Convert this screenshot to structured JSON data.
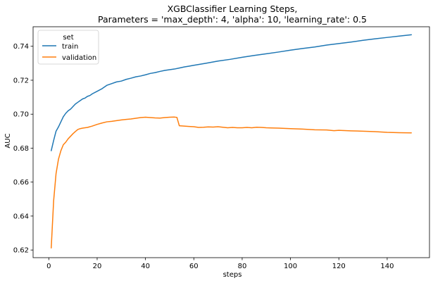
{
  "chart_data": {
    "type": "line",
    "title": "XGBClassifier Learning Steps,",
    "subtitle": "Parameters = 'max_depth': 4, 'alpha': 10, 'learning_rate': 0.5",
    "xlabel": "steps",
    "ylabel": "AUC",
    "xlim": [
      -6.5,
      157.5
    ],
    "ylim": [
      0.6155,
      0.7515
    ],
    "xticks": [
      0,
      20,
      40,
      60,
      80,
      100,
      120,
      140
    ],
    "yticks": [
      0.62,
      0.64,
      0.66,
      0.68,
      0.7,
      0.72,
      0.74
    ],
    "ytick_labels": [
      "0.62",
      "0.64",
      "0.66",
      "0.68",
      "0.70",
      "0.72",
      "0.74"
    ],
    "grid": false,
    "legend": {
      "title": "set",
      "placement": "top-left"
    },
    "series": [
      {
        "name": "train",
        "color": "#1f77b4",
        "points": [
          [
            1,
            0.6785
          ],
          [
            2,
            0.6845
          ],
          [
            3,
            0.69
          ],
          [
            4,
            0.6925
          ],
          [
            5,
            0.6955
          ],
          [
            6,
            0.6985
          ],
          [
            7,
            0.7005
          ],
          [
            8,
            0.702
          ],
          [
            9,
            0.703
          ],
          [
            10,
            0.7045
          ],
          [
            11,
            0.706
          ],
          [
            12,
            0.707
          ],
          [
            13,
            0.708
          ],
          [
            14,
            0.709
          ],
          [
            15,
            0.7095
          ],
          [
            16,
            0.7105
          ],
          [
            17,
            0.711
          ],
          [
            18,
            0.712
          ],
          [
            20,
            0.7135
          ],
          [
            22,
            0.715
          ],
          [
            24,
            0.717
          ],
          [
            26,
            0.718
          ],
          [
            28,
            0.719
          ],
          [
            30,
            0.7195
          ],
          [
            32,
            0.7205
          ],
          [
            34,
            0.7212
          ],
          [
            36,
            0.722
          ],
          [
            38,
            0.7225
          ],
          [
            40,
            0.7232
          ],
          [
            42,
            0.724
          ],
          [
            44,
            0.7245
          ],
          [
            46,
            0.7252
          ],
          [
            48,
            0.7258
          ],
          [
            50,
            0.7262
          ],
          [
            52,
            0.7266
          ],
          [
            54,
            0.7272
          ],
          [
            56,
            0.7278
          ],
          [
            58,
            0.7283
          ],
          [
            60,
            0.7288
          ],
          [
            65,
            0.73
          ],
          [
            70,
            0.7313
          ],
          [
            75,
            0.7323
          ],
          [
            80,
            0.7335
          ],
          [
            85,
            0.7346
          ],
          [
            90,
            0.7356
          ],
          [
            95,
            0.7366
          ],
          [
            100,
            0.7377
          ],
          [
            105,
            0.7387
          ],
          [
            110,
            0.7396
          ],
          [
            115,
            0.7407
          ],
          [
            120,
            0.7416
          ],
          [
            125,
            0.7425
          ],
          [
            130,
            0.7435
          ],
          [
            135,
            0.7444
          ],
          [
            140,
            0.7452
          ],
          [
            145,
            0.746
          ],
          [
            150,
            0.7468
          ]
        ]
      },
      {
        "name": "validation",
        "color": "#ff7f0e",
        "points": [
          [
            1,
            0.6212
          ],
          [
            2,
            0.649
          ],
          [
            3,
            0.665
          ],
          [
            4,
            0.6735
          ],
          [
            5,
            0.6785
          ],
          [
            6,
            0.682
          ],
          [
            7,
            0.6835
          ],
          [
            8,
            0.6855
          ],
          [
            9,
            0.687
          ],
          [
            10,
            0.6885
          ],
          [
            11,
            0.6898
          ],
          [
            12,
            0.691
          ],
          [
            13,
            0.6915
          ],
          [
            14,
            0.6918
          ],
          [
            16,
            0.6922
          ],
          [
            18,
            0.693
          ],
          [
            20,
            0.694
          ],
          [
            22,
            0.6948
          ],
          [
            24,
            0.6955
          ],
          [
            26,
            0.6958
          ],
          [
            28,
            0.6962
          ],
          [
            30,
            0.6966
          ],
          [
            32,
            0.6969
          ],
          [
            34,
            0.6972
          ],
          [
            36,
            0.6976
          ],
          [
            38,
            0.698
          ],
          [
            40,
            0.6982
          ],
          [
            42,
            0.698
          ],
          [
            44,
            0.6978
          ],
          [
            46,
            0.6977
          ],
          [
            48,
            0.698
          ],
          [
            50,
            0.6982
          ],
          [
            52,
            0.6983
          ],
          [
            53,
            0.6981
          ],
          [
            54,
            0.6932
          ],
          [
            55,
            0.6931
          ],
          [
            56,
            0.693
          ],
          [
            58,
            0.6928
          ],
          [
            60,
            0.6926
          ],
          [
            62,
            0.6922
          ],
          [
            64,
            0.6923
          ],
          [
            66,
            0.6925
          ],
          [
            68,
            0.6924
          ],
          [
            70,
            0.6926
          ],
          [
            72,
            0.6923
          ],
          [
            74,
            0.692
          ],
          [
            76,
            0.6922
          ],
          [
            78,
            0.692
          ],
          [
            80,
            0.692
          ],
          [
            82,
            0.6922
          ],
          [
            84,
            0.692
          ],
          [
            86,
            0.6923
          ],
          [
            88,
            0.6922
          ],
          [
            90,
            0.692
          ],
          [
            95,
            0.6918
          ],
          [
            100,
            0.6915
          ],
          [
            105,
            0.6912
          ],
          [
            110,
            0.6908
          ],
          [
            115,
            0.6907
          ],
          [
            118,
            0.6903
          ],
          [
            120,
            0.6905
          ],
          [
            125,
            0.6902
          ],
          [
            130,
            0.69
          ],
          [
            135,
            0.6897
          ],
          [
            140,
            0.6893
          ],
          [
            145,
            0.6891
          ],
          [
            150,
            0.689
          ]
        ]
      }
    ]
  }
}
